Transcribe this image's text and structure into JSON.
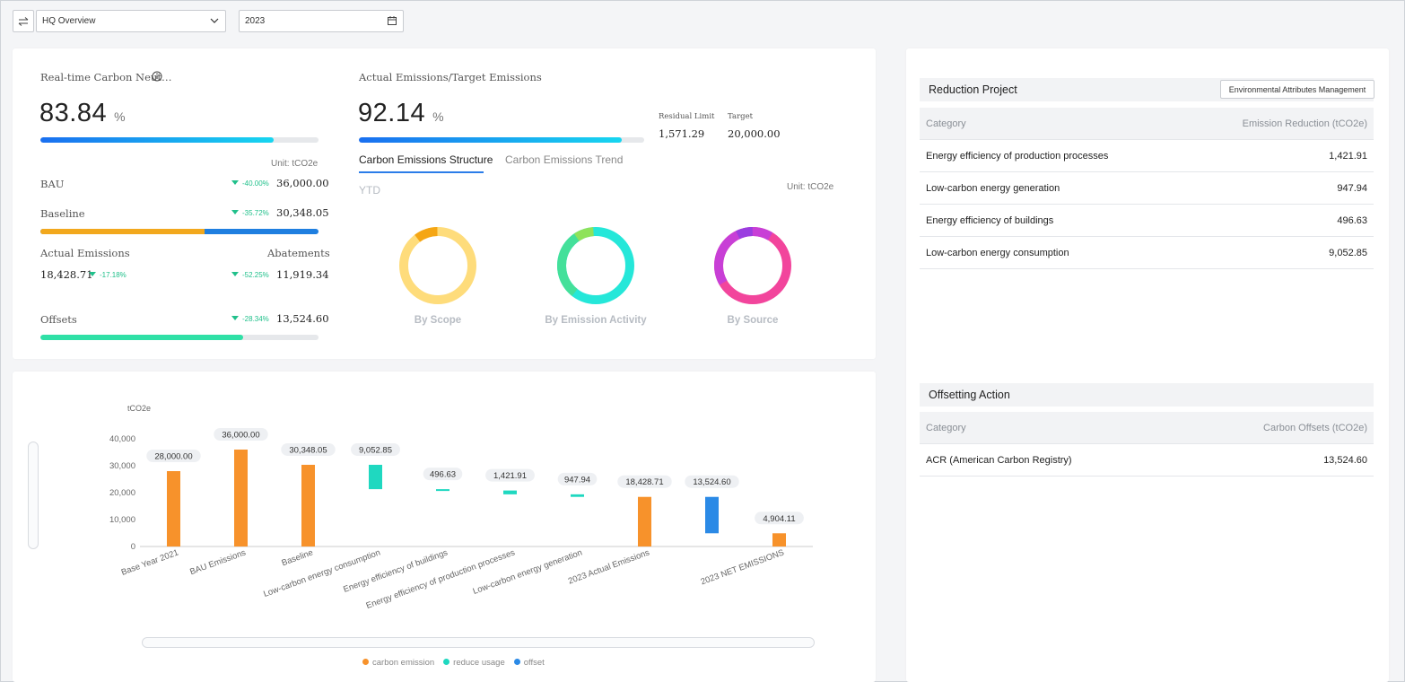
{
  "toolbar": {
    "view_select": "HQ Overview",
    "year": "2023"
  },
  "kpi": {
    "neutrality": {
      "label": "Real-time Carbon Neut…",
      "value": "83.84",
      "unit": "%",
      "progress": 0.838
    },
    "actual_vs_target": {
      "label": "Actual Emissions/Target Emissions",
      "value": "92.14",
      "unit": "%",
      "progress": 0.921,
      "residual_limit_label": "Residual Limit",
      "residual_limit_value": "1,571.29",
      "target_label": "Target",
      "target_value": "20,000.00"
    },
    "unit_note": "Unit: tCO2e",
    "bau": {
      "label": "BAU",
      "delta": "-40.00%",
      "value": "36,000.00"
    },
    "baseline": {
      "label": "Baseline",
      "delta": "-35.72%",
      "value": "30,348.05",
      "progress": 0.59
    },
    "actual_emissions": {
      "label": "Actual Emissions",
      "value": "18,428.71",
      "delta": "-17.18%"
    },
    "abatements": {
      "label": "Abatements",
      "delta": "-52.25%",
      "value": "11,919.34"
    },
    "offsets": {
      "label": "Offsets",
      "delta": "-28.34%",
      "value": "13,524.60",
      "progress": 0.73
    }
  },
  "tabs": {
    "structure": "Carbon Emissions Structure",
    "trend": "Carbon Emissions Trend"
  },
  "structure": {
    "period": "YTD",
    "unit": "Unit: tCO2e",
    "donuts": [
      {
        "label": "By Scope"
      },
      {
        "label": "By Emission Activity"
      },
      {
        "label": "By Source"
      }
    ]
  },
  "colors": {
    "carbon_emission": "#f7922b",
    "reduce_usage": "#1fd8c0",
    "offset": "#2b8ae6"
  },
  "chart_data": {
    "type": "bar",
    "ylabel": "tCO2e",
    "ylim": [
      0,
      40000
    ],
    "yticks": [
      "0",
      "10,000",
      "20,000",
      "30,000",
      "40,000"
    ],
    "categories": [
      "Base Year 2021",
      "BAU Emissions",
      "Baseline",
      "Low-carbon energy consumption",
      "Energy efficiency of buildings",
      "Energy efficiency of production processes",
      "Low-carbon energy generation",
      "2023 Actual Emissions",
      "",
      "2023 NET EMISSIONS"
    ],
    "bars": [
      {
        "base": 0,
        "top": 28000,
        "label": "28,000.00",
        "series": "carbon emission"
      },
      {
        "base": 0,
        "top": 36000,
        "label": "36,000.00",
        "series": "carbon emission"
      },
      {
        "base": 0,
        "top": 30348.05,
        "label": "30,348.05",
        "series": "carbon emission"
      },
      {
        "base": 21295.2,
        "top": 30348.05,
        "label": "9,052.85",
        "series": "reduce usage"
      },
      {
        "base": 20798.57,
        "top": 21295.2,
        "label": "496.63",
        "series": "reduce usage"
      },
      {
        "base": 19376.66,
        "top": 20798.57,
        "label": "1,421.91",
        "series": "reduce usage"
      },
      {
        "base": 18428.72,
        "top": 19376.66,
        "label": "947.94",
        "series": "reduce usage"
      },
      {
        "base": 0,
        "top": 18428.71,
        "label": "18,428.71",
        "series": "carbon emission"
      },
      {
        "base": 4904.11,
        "top": 18428.71,
        "label": "13,524.60",
        "series": "offset"
      },
      {
        "base": 0,
        "top": 4904.11,
        "label": "4,904.11",
        "series": "carbon emission"
      }
    ],
    "legend": [
      "carbon emission",
      "reduce usage",
      "offset"
    ]
  },
  "reduction": {
    "title": "Reduction Project",
    "button": "Environmental Attributes Management",
    "col_category": "Category",
    "col_value": "Emission Reduction (tCO2e)",
    "rows": [
      {
        "category": "Energy efficiency of production processes",
        "value": "1,421.91"
      },
      {
        "category": "Low-carbon energy generation",
        "value": "947.94"
      },
      {
        "category": "Energy efficiency of buildings",
        "value": "496.63"
      },
      {
        "category": "Low-carbon energy consumption",
        "value": "9,052.85"
      }
    ]
  },
  "offsetting": {
    "title": "Offsetting Action",
    "col_category": "Category",
    "col_value": "Carbon Offsets (tCO2e)",
    "rows": [
      {
        "category": "ACR (American Carbon Registry)",
        "value": "13,524.60"
      }
    ]
  }
}
